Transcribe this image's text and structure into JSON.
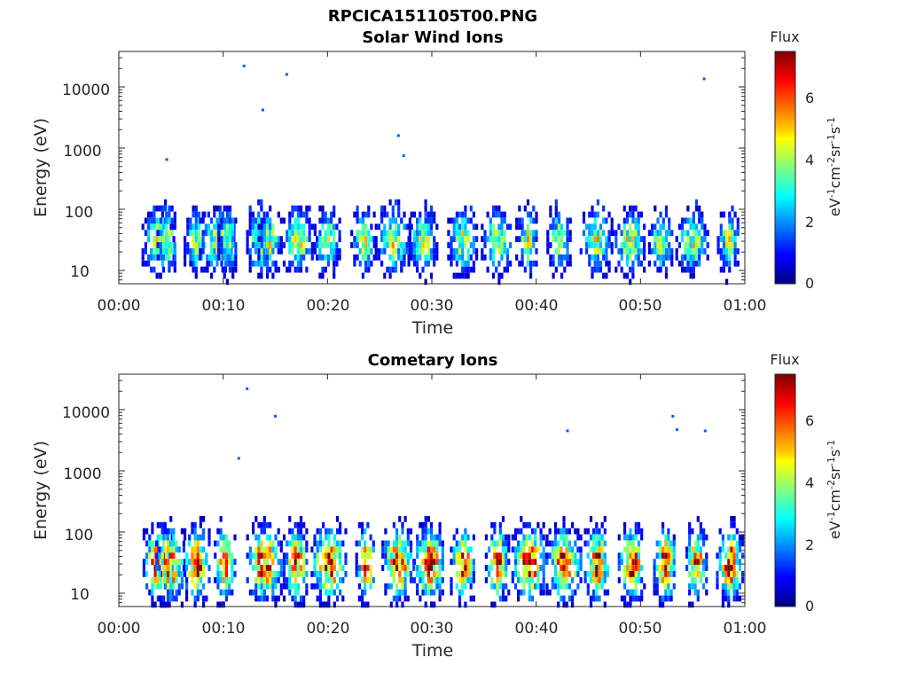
{
  "figure": {
    "title": "RPCICA151105T00.PNG"
  },
  "chart_data": [
    {
      "type": "heatmap",
      "title": "Solar Wind Ions",
      "xlabel": "Time",
      "ylabel": "Energy (eV)",
      "xlim_minutes": [
        0,
        60
      ],
      "xticks": [
        "00:00",
        "00:10",
        "00:20",
        "00:30",
        "00:40",
        "00:50",
        "01:00"
      ],
      "y_scale": "log",
      "ylim": [
        6,
        40000
      ],
      "yticks": [
        "10",
        "100",
        "1000",
        "10000"
      ],
      "colorbar": {
        "label": "Flux",
        "unit": "eV-1cm-2sr-1s-1",
        "ticks": [
          "0",
          "2",
          "4",
          "6"
        ],
        "range": [
          0,
          7.5
        ],
        "colormap": "jet"
      },
      "bursts_minutes": [
        3.8,
        4.7,
        7.5,
        9.5,
        10.5,
        13.5,
        14.5,
        17.2,
        20.0,
        23.5,
        26.3,
        29.2,
        33.0,
        36.3,
        39.2,
        42.2,
        45.8,
        49.0,
        52.0,
        55.0,
        58.5
      ],
      "flux_peak_energy_eV": 30,
      "flux_typical_max": 4.5,
      "isolated_points": [
        {
          "t": 12.0,
          "e": 22000
        },
        {
          "t": 13.8,
          "e": 4200
        },
        {
          "t": 16.1,
          "e": 16000
        },
        {
          "t": 26.8,
          "e": 1600
        },
        {
          "t": 56.1,
          "e": 13500
        },
        {
          "t": 4.6,
          "e": 650
        },
        {
          "t": 27.3,
          "e": 750
        }
      ]
    },
    {
      "type": "heatmap",
      "title": "Cometary Ions",
      "xlabel": "Time",
      "ylabel": "Energy (eV)",
      "xlim_minutes": [
        0,
        60
      ],
      "xticks": [
        "00:00",
        "00:10",
        "00:20",
        "00:30",
        "00:40",
        "00:50",
        "01:00"
      ],
      "y_scale": "log",
      "ylim": [
        6,
        40000
      ],
      "yticks": [
        "10",
        "100",
        "1000",
        "10000"
      ],
      "colorbar": {
        "label": "Flux",
        "unit": "eV-1cm-2sr-1s-1",
        "ticks": [
          "0",
          "2",
          "4",
          "6"
        ],
        "range": [
          0,
          7.5
        ],
        "colormap": "jet"
      },
      "bursts_minutes": [
        3.8,
        5.0,
        7.5,
        10.2,
        14.0,
        17.0,
        20.2,
        23.7,
        26.8,
        29.8,
        33.0,
        36.3,
        39.4,
        42.7,
        45.9,
        49.2,
        52.4,
        55.4,
        58.6
      ],
      "flux_peak_energy_eV": 30,
      "flux_typical_max": 7.0,
      "isolated_points": [
        {
          "t": 12.3,
          "e": 22000
        },
        {
          "t": 15.0,
          "e": 7800
        },
        {
          "t": 11.5,
          "e": 1600
        },
        {
          "t": 43.0,
          "e": 4500
        },
        {
          "t": 53.1,
          "e": 7800
        },
        {
          "t": 53.5,
          "e": 4700
        },
        {
          "t": 56.2,
          "e": 4500
        }
      ]
    }
  ]
}
